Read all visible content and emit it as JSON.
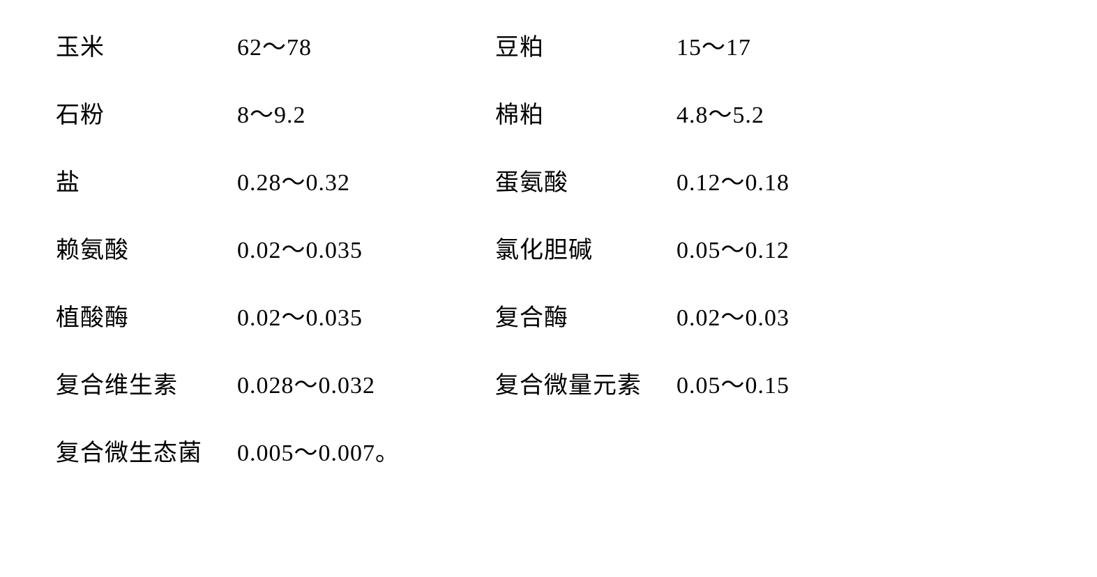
{
  "table": {
    "rows": [
      {
        "label1": "玉米",
        "value1": "62～78",
        "label2": "豆粕",
        "value2": "15～17"
      },
      {
        "label1": "石粉",
        "value1": "8～9.2",
        "label2": "棉粕",
        "value2": "4.8～5.2"
      },
      {
        "label1": "盐",
        "value1": "0.28～0.32",
        "label2": "蛋氨酸",
        "value2": "0.12～0.18"
      },
      {
        "label1": "赖氨酸",
        "value1": "0.02～0.035",
        "label2": "氯化胆碱",
        "value2": "0.05～0.12"
      },
      {
        "label1": "植酸酶",
        "value1": "0.02～0.035",
        "label2": "复合酶",
        "value2": "0.02～0.03"
      },
      {
        "label1": "复合维生素",
        "value1": "0.028～0.032",
        "label2": "复合微量元素",
        "value2": "0.05～0.15"
      },
      {
        "label1": "复合微生态菌",
        "value1": "0.005～0.007。",
        "label2": "",
        "value2": ""
      }
    ],
    "font_size": 34,
    "text_color": "#000000",
    "background_color": "#ffffff",
    "row_gap": 48,
    "label_width": 260,
    "value_width": 370
  }
}
